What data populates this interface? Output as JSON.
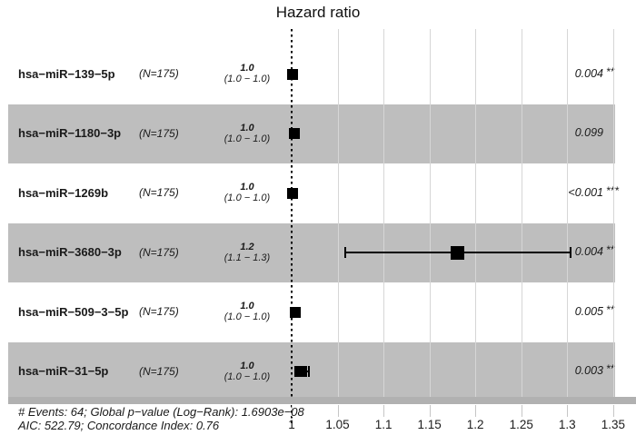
{
  "title": "Hazard ratio",
  "colors": {
    "band_gray": "#bebebe",
    "band_white": "#ffffff",
    "marker_black": "#000000",
    "axis_bar_gray": "#b1b1b1",
    "gridline_gray": "#d6d6d6",
    "text_black": "#1a1a1a"
  },
  "chart_data": {
    "type": "forest",
    "title": "Hazard ratio",
    "x_axis": {
      "ticks": [
        1,
        1.05,
        1.1,
        1.15,
        1.2,
        1.25,
        1.3,
        1.35
      ],
      "tick_labels": [
        "1",
        "1.05",
        "1.1",
        "1.15",
        "1.2",
        "1.25",
        "1.3",
        "1.35"
      ],
      "min": 1.0,
      "max": 1.35,
      "reference_line": 1.0
    },
    "rows": [
      {
        "label": "hsa−miR−139−5p",
        "n": "(N=175)",
        "estimate": "1.0",
        "ci": "(1.0 − 1.0)",
        "hr": 1.001,
        "ci_low": 1.001,
        "ci_high": 1.001,
        "p": "0.004",
        "stars": "**",
        "band": "white"
      },
      {
        "label": "hsa−miR−1180−3p",
        "n": "(N=175)",
        "estimate": "1.0",
        "ci": "(1.0 − 1.0)",
        "hr": 1.003,
        "ci_low": 1.003,
        "ci_high": 1.003,
        "p": "0.099",
        "stars": "",
        "band": "gray"
      },
      {
        "label": "hsa−miR−1269b",
        "n": "(N=175)",
        "estimate": "1.0",
        "ci": "(1.0 − 1.0)",
        "hr": 1.001,
        "ci_low": 1.001,
        "ci_high": 1.001,
        "p": "<0.001",
        "stars": "***",
        "band": "white"
      },
      {
        "label": "hsa−miR−3680−3p",
        "n": "(N=175)",
        "estimate": "1.2",
        "ci": "(1.1 − 1.3)",
        "hr": 1.181,
        "ci_low": 1.058,
        "ci_high": 1.304,
        "p": "0.004",
        "stars": "**",
        "band": "gray"
      },
      {
        "label": "hsa−miR−509−3−5p",
        "n": "(N=175)",
        "estimate": "1.0",
        "ci": "(1.0 − 1.0)",
        "hr": 1.004,
        "ci_low": 1.004,
        "ci_high": 1.004,
        "p": "0.005",
        "stars": "**",
        "band": "white"
      },
      {
        "label": "hsa−miR−31−5p",
        "n": "(N=175)",
        "estimate": "1.0",
        "ci": "(1.0 − 1.0)",
        "hr": 1.011,
        "ci_low": 1.004,
        "ci_high": 1.019,
        "p": "0.003",
        "stars": "**",
        "band": "gray"
      }
    ],
    "footnote_line1": "# Events: 64; Global p−value (Log−Rank): 1.6903e−08",
    "footnote_line2": "AIC: 522.79; Concordance Index: 0.76"
  }
}
